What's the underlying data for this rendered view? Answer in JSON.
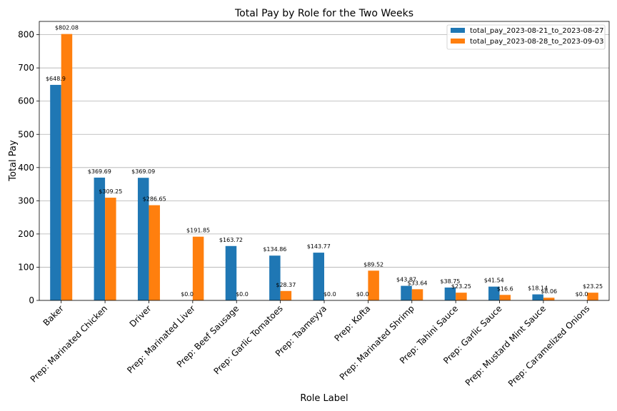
{
  "chart_data": {
    "type": "bar",
    "title": "Total Pay by Role for the Two Weeks",
    "xlabel": "Role Label",
    "ylabel": "Total Pay",
    "ylim": [
      0,
      840
    ],
    "yticks": [
      0,
      100,
      200,
      300,
      400,
      500,
      600,
      700,
      800
    ],
    "grid": "horizontal",
    "legend_position": "top-right",
    "categories": [
      "Baker",
      "Prep: Marinated Chicken",
      "Driver",
      "Prep: Marinated Liver",
      "Prep: Beef Sausage",
      "Prep: Garlic Tomatoes",
      "Prep: Taameyya",
      "Prep: Kofta",
      "Prep: Marinated Shrimp",
      "Prep: Tahini Sauce",
      "Prep: Garlic Sauce",
      "Prep: Mustard Mint Sauce",
      "Prep: Caramelized Onions"
    ],
    "series": [
      {
        "name": "total_pay_2023-08-21_to_2023-08-27",
        "color": "#1f77b4",
        "values": [
          648.9,
          369.69,
          369.09,
          0.0,
          163.72,
          134.86,
          143.77,
          0.0,
          43.87,
          38.75,
          41.54,
          18.14,
          0.0
        ],
        "labels": [
          "$648.9",
          "$369.69",
          "$369.09",
          "$0.0",
          "$163.72",
          "$134.86",
          "$143.77",
          "$0.0",
          "$43.87",
          "$38.75",
          "$41.54",
          "$18.14",
          "$0.0"
        ]
      },
      {
        "name": "total_pay_2023-08-28_to_2023-09-03",
        "color": "#ff7f0e",
        "values": [
          802.08,
          309.25,
          286.65,
          191.85,
          0.0,
          28.37,
          0.0,
          89.52,
          33.64,
          23.25,
          16.6,
          8.06,
          23.25
        ],
        "labels": [
          "$802.08",
          "$309.25",
          "$286.65",
          "$191.85",
          "$0.0",
          "$28.37",
          "$0.0",
          "$89.52",
          "$33.64",
          "$23.25",
          "$16.6",
          "$8.06",
          "$23.25"
        ]
      }
    ]
  }
}
